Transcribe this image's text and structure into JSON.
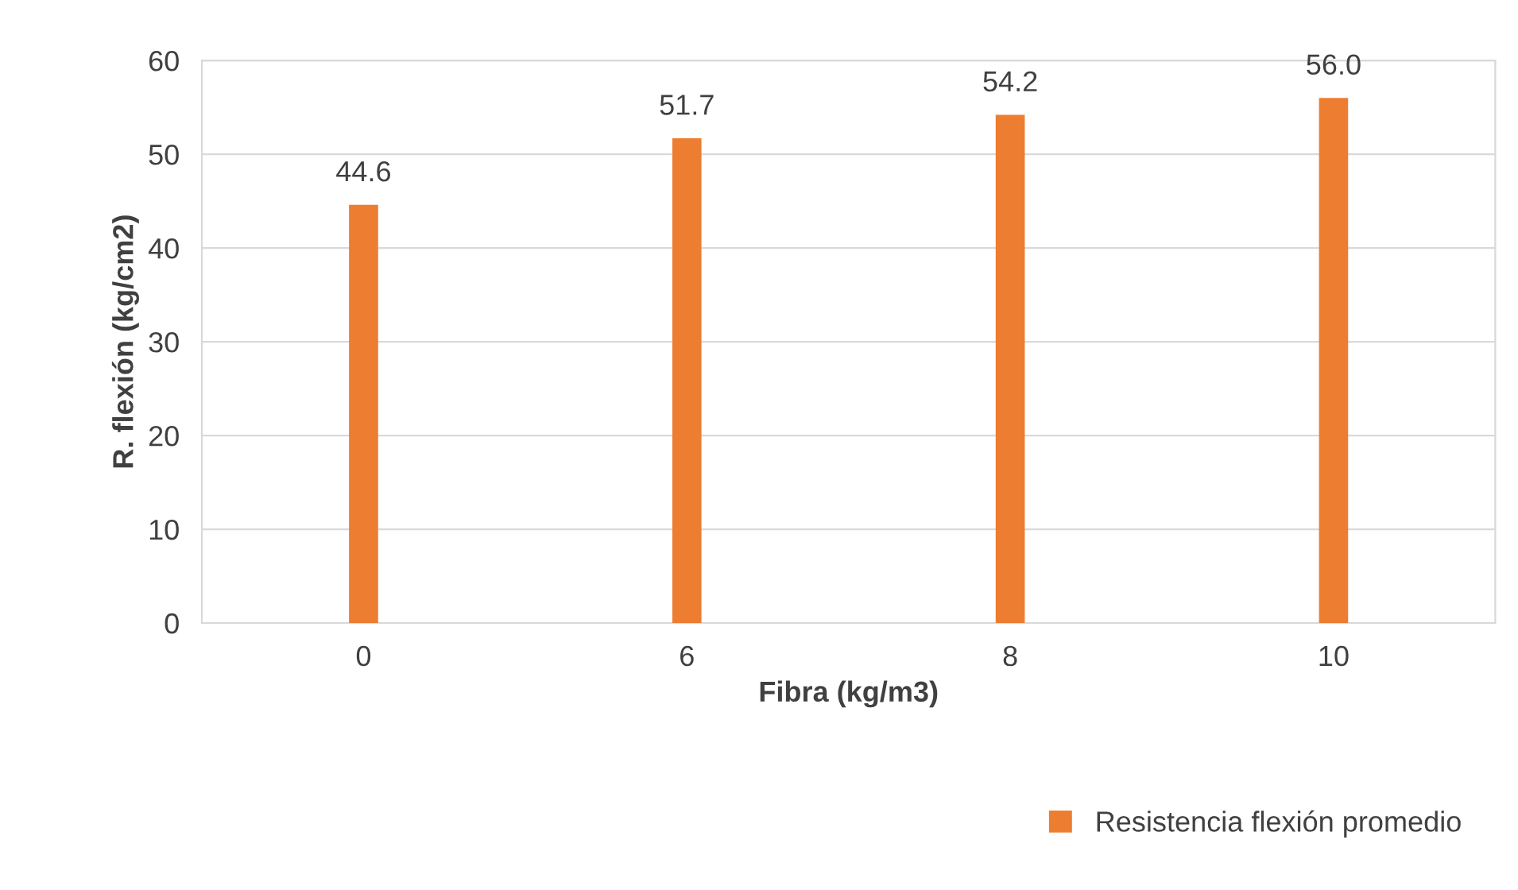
{
  "chart_data": {
    "type": "bar",
    "xlabel": "Fibra (kg/m3)",
    "ylabel": "R. flexión (kg/cm2)",
    "categories": [
      "0",
      "6",
      "8",
      "10"
    ],
    "series": [
      {
        "name": "Resistencia flexión promedio",
        "color": "#ed7d31",
        "values": [
          44.6,
          51.7,
          54.2,
          56.0
        ]
      }
    ],
    "value_labels": [
      "44.6",
      "51.7",
      "54.2",
      "56.0"
    ],
    "ylim": [
      0,
      60
    ],
    "yticks": [
      0,
      10,
      20,
      30,
      40,
      50,
      60
    ],
    "grid": "y",
    "legend": "bottom right"
  }
}
